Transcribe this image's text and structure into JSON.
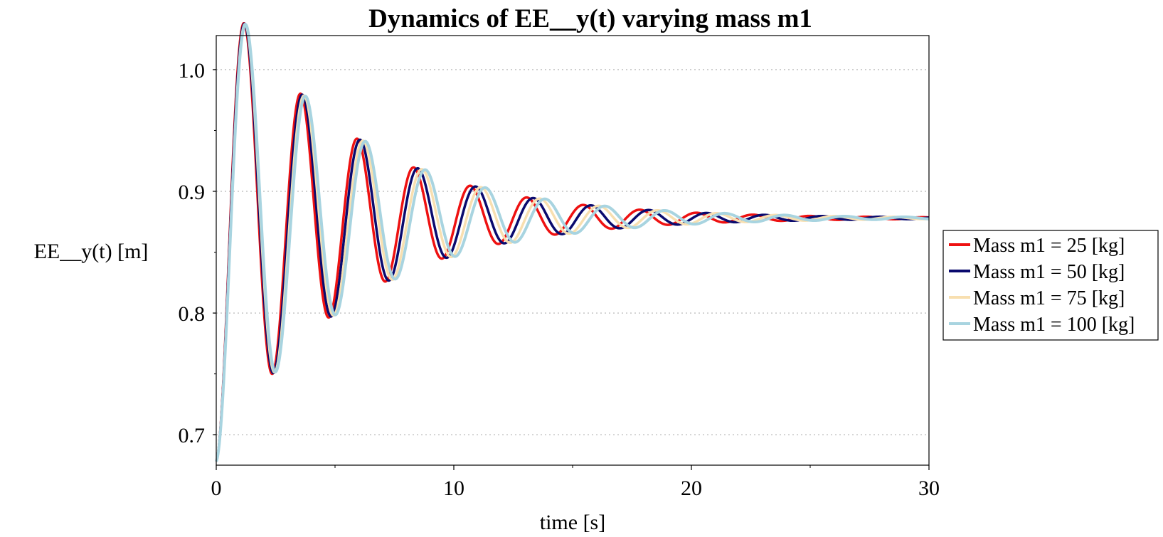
{
  "chart_data": {
    "type": "line",
    "title": "Dynamics of EE__y(t) varying mass m1",
    "xlabel": "time [s]",
    "ylabel": "EE__y(t) [m]",
    "xlim": [
      0,
      30
    ],
    "ylim": [
      0.675,
      1.028
    ],
    "x_ticks": [
      0,
      10,
      20,
      30
    ],
    "y_ticks": [
      0.7,
      0.8,
      0.9,
      1.0
    ],
    "x_tick_labels": [
      "0",
      "10",
      "20",
      "30"
    ],
    "y_tick_labels": [
      "0.7",
      "0.8",
      "0.9",
      "1.0"
    ],
    "grid": "horizontal dotted",
    "legend_position": "right",
    "model": {
      "y_final": 0.878,
      "y_start": 0.678
    },
    "series": [
      {
        "name": "Mass m1 = 25 [kg]",
        "color": "#ee1111",
        "period": 2.38,
        "decay_time": 5.3,
        "width": 3.5
      },
      {
        "name": "Mass m1 = 50 [kg]",
        "color": "#0a0a6e",
        "period": 2.43,
        "decay_time": 5.35,
        "width": 3.5
      },
      {
        "name": "Mass m1 = 75 [kg]",
        "color": "#f8dfb0",
        "period": 2.48,
        "decay_time": 5.4,
        "width": 3.5
      },
      {
        "name": "Mass m1 = 100 [kg]",
        "color": "#a8d4e0",
        "period": 2.52,
        "decay_time": 5.45,
        "width": 4
      }
    ]
  }
}
